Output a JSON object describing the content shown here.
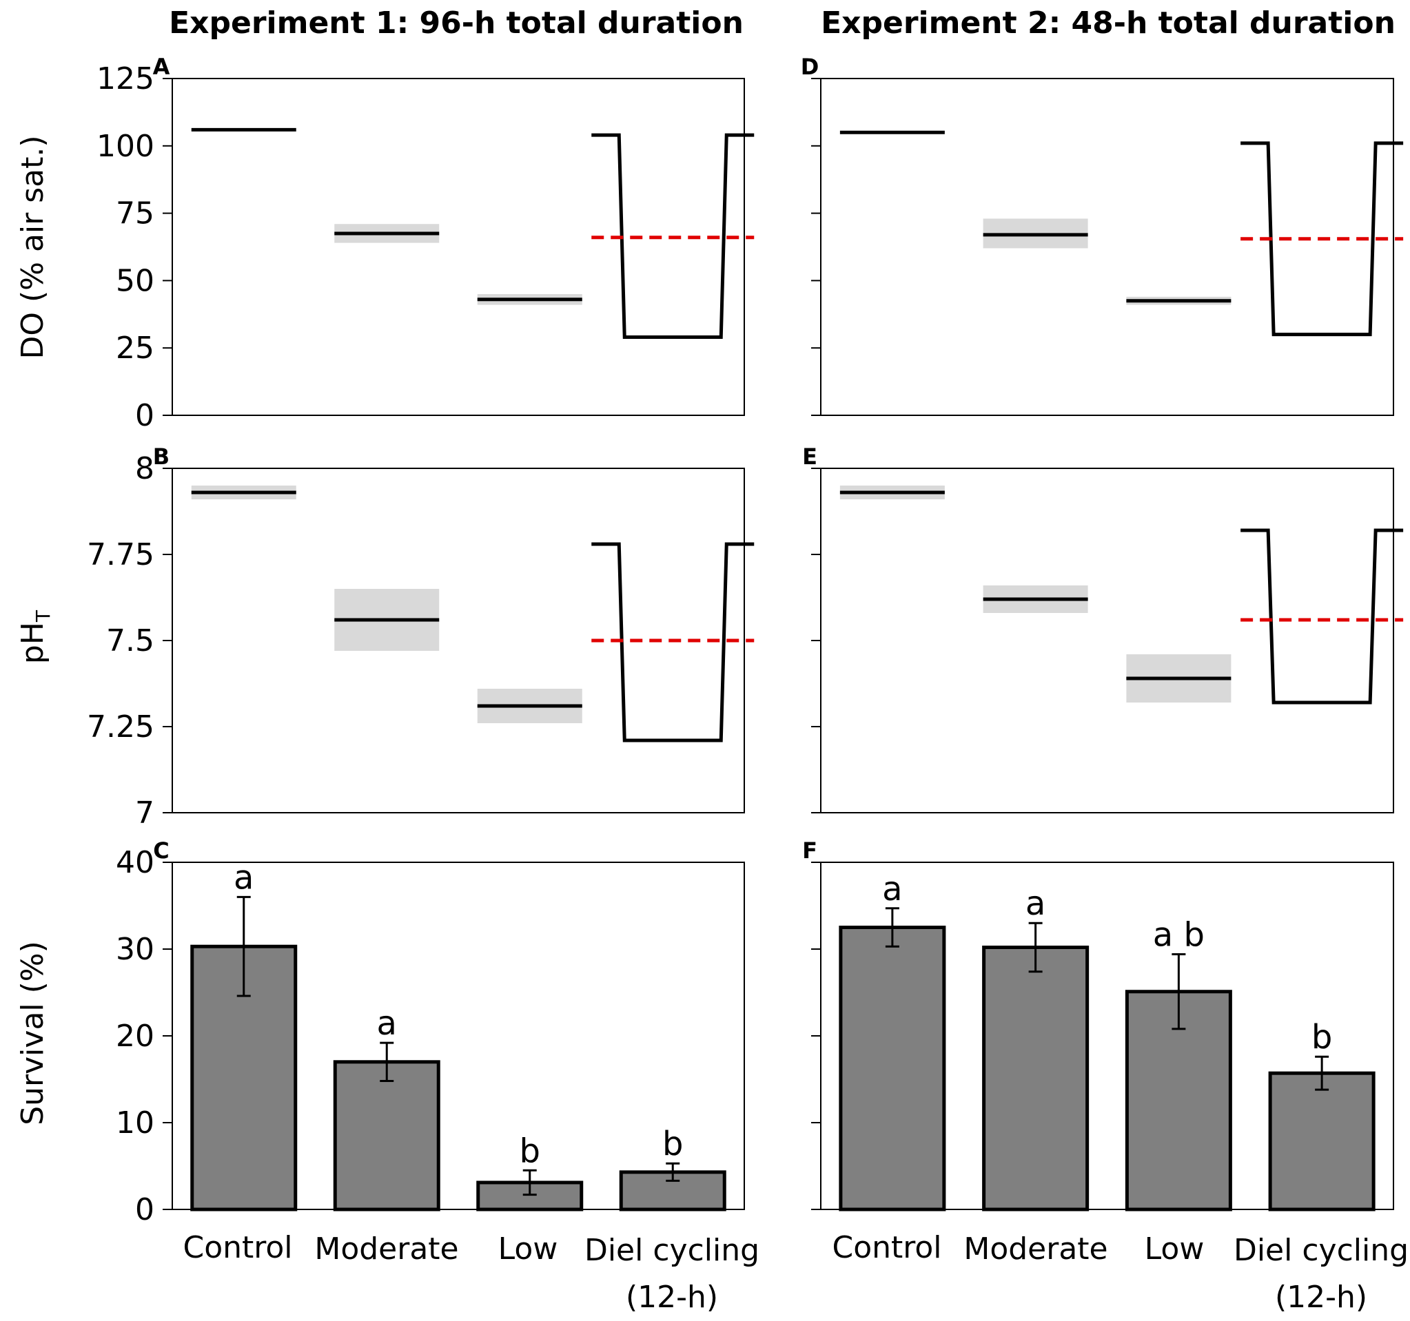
{
  "experiments": [
    {
      "title": "Experiment 1: 96-h total duration"
    },
    {
      "title": "Experiment 2: 48-h total duration"
    }
  ],
  "categories": [
    {
      "line1": "Control",
      "line2": ""
    },
    {
      "line1": "Moderate",
      "line2": ""
    },
    {
      "line1": "Low",
      "line2": ""
    },
    {
      "line1": "Diel cycling",
      "line2": "(12-h)"
    }
  ],
  "y_labels": {
    "do": "DO (% air sat.)",
    "ph_main": "pH",
    "ph_sub": "T",
    "survival": "Survival (%)"
  },
  "colors": {
    "bar_fill": "#808080",
    "band": "#d9d9d9",
    "cycle_mean": "#e00000",
    "line": "#000000"
  },
  "chart_data": [
    {
      "panel": "A",
      "type": "line",
      "ylabel": "DO (% air sat.)",
      "ylim": [
        0,
        125
      ],
      "yticks": [
        "0",
        "25",
        "50",
        "75",
        "100",
        "125"
      ],
      "show_tick_labels": true,
      "levels": [
        {
          "category": "Control",
          "mean": 106,
          "low": 106,
          "high": 106
        },
        {
          "category": "Moderate",
          "mean": 67.5,
          "low": 64,
          "high": 71
        },
        {
          "category": "Low",
          "mean": 43,
          "low": 41,
          "high": 45
        }
      ],
      "cycle": {
        "category": "Diel cycling (12-h)",
        "high": 104,
        "low": 29,
        "mean": 66
      }
    },
    {
      "panel": "B",
      "type": "line",
      "ylabel": "pHT",
      "ylim": [
        7,
        8
      ],
      "yticks": [
        "7",
        "7.25",
        "7.5",
        "7.75",
        "8"
      ],
      "show_tick_labels": true,
      "levels": [
        {
          "category": "Control",
          "mean": 7.93,
          "low": 7.91,
          "high": 7.95
        },
        {
          "category": "Moderate",
          "mean": 7.56,
          "low": 7.47,
          "high": 7.65
        },
        {
          "category": "Low",
          "mean": 7.31,
          "low": 7.26,
          "high": 7.36
        }
      ],
      "cycle": {
        "category": "Diel cycling (12-h)",
        "high": 7.78,
        "low": 7.21,
        "mean": 7.5
      }
    },
    {
      "panel": "C",
      "type": "bar",
      "ylabel": "Survival (%)",
      "ylim": [
        0,
        40
      ],
      "yticks": [
        "0",
        "10",
        "20",
        "30",
        "40"
      ],
      "show_tick_labels": true,
      "categories": [
        "Control",
        "Moderate",
        "Low",
        "Diel cycling (12-h)"
      ],
      "values": [
        30.3,
        17,
        3.1,
        4.3
      ],
      "errors": [
        5.7,
        2.2,
        1.4,
        1.0
      ],
      "significance": [
        "a",
        "a",
        "b",
        "b"
      ]
    },
    {
      "panel": "D",
      "type": "line",
      "ylabel": "DO (% air sat.)",
      "ylim": [
        0,
        125
      ],
      "yticks": [
        "0",
        "25",
        "50",
        "75",
        "100",
        "125"
      ],
      "show_tick_labels": false,
      "levels": [
        {
          "category": "Control",
          "mean": 105,
          "low": 105,
          "high": 105
        },
        {
          "category": "Moderate",
          "mean": 67,
          "low": 62,
          "high": 73
        },
        {
          "category": "Low",
          "mean": 42.5,
          "low": 41,
          "high": 44
        }
      ],
      "cycle": {
        "category": "Diel cycling (12-h)",
        "high": 101,
        "low": 30,
        "mean": 65.5
      }
    },
    {
      "panel": "E",
      "type": "line",
      "ylabel": "pHT",
      "ylim": [
        7,
        8
      ],
      "yticks": [
        "7",
        "7.25",
        "7.5",
        "7.75",
        "8"
      ],
      "show_tick_labels": false,
      "levels": [
        {
          "category": "Control",
          "mean": 7.93,
          "low": 7.91,
          "high": 7.95
        },
        {
          "category": "Moderate",
          "mean": 7.62,
          "low": 7.58,
          "high": 7.66
        },
        {
          "category": "Low",
          "mean": 7.39,
          "low": 7.32,
          "high": 7.46
        }
      ],
      "cycle": {
        "category": "Diel cycling (12-h)",
        "high": 7.82,
        "low": 7.32,
        "mean": 7.56
      }
    },
    {
      "panel": "F",
      "type": "bar",
      "ylabel": "Survival (%)",
      "ylim": [
        0,
        40
      ],
      "yticks": [
        "0",
        "10",
        "20",
        "30",
        "40"
      ],
      "show_tick_labels": false,
      "categories": [
        "Control",
        "Moderate",
        "Low",
        "Diel cycling (12-h)"
      ],
      "values": [
        32.5,
        30.2,
        25.1,
        15.7
      ],
      "errors": [
        2.2,
        2.8,
        4.3,
        1.9
      ],
      "significance": [
        "a",
        "a",
        "a b",
        "b"
      ]
    }
  ]
}
